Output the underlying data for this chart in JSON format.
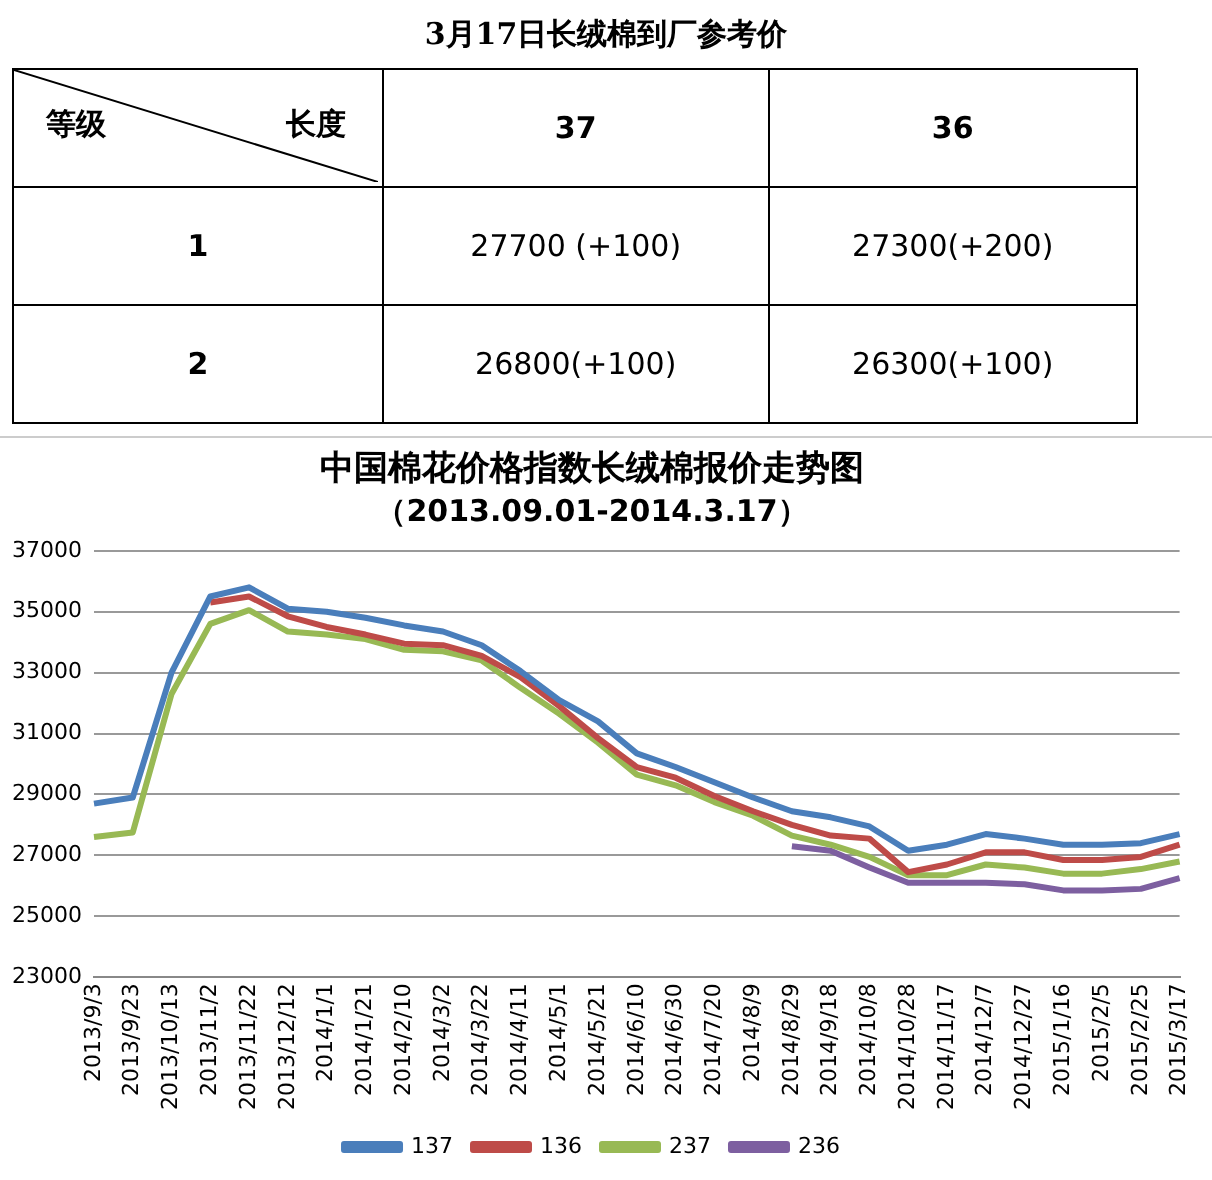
{
  "chart_data": [
    {
      "type": "other",
      "title": "3月17日长绒棉到厂参考价",
      "annotations": [
        "等级",
        "长度",
        "37",
        "36",
        "1",
        "27700 (+100)",
        "27300(+200)",
        "2",
        "26800(+100)",
        "26300(+100)"
      ]
    },
    {
      "type": "line",
      "title": "中国棉花价格指数长绒棉报价走势图",
      "subtitle": "（2013.09.01-2014.3.17）",
      "categories": [
        "2013/9/3",
        "2013/9/23",
        "2013/10/13",
        "2013/11/2",
        "2013/11/22",
        "2013/12/12",
        "2014/1/1",
        "2014/1/21",
        "2014/2/10",
        "2014/3/2",
        "2014/3/22",
        "2014/4/11",
        "2014/5/1",
        "2014/5/21",
        "2014/6/10",
        "2014/6/30",
        "2014/7/20",
        "2014/8/9",
        "2014/8/29",
        "2014/9/18",
        "2014/10/8",
        "2014/10/28",
        "2014/11/17",
        "2014/12/7",
        "2014/12/27",
        "2015/1/16",
        "2015/2/5",
        "2015/2/25",
        "2015/3/17"
      ],
      "series": [
        {
          "name": "137",
          "color": "#4a7ebb",
          "values": [
            28700,
            28900,
            33000,
            35500,
            35800,
            35100,
            35000,
            34800,
            34550,
            34350,
            33900,
            33050,
            32100,
            31400,
            30350,
            29900,
            29400,
            28900,
            28450,
            28250,
            27950,
            27150,
            27350,
            27700,
            27550,
            27350,
            27350,
            27400,
            27700
          ]
        },
        {
          "name": "136",
          "color": "#be4b48",
          "values": [
            null,
            null,
            null,
            35300,
            35500,
            34850,
            34500,
            34250,
            33950,
            33900,
            33550,
            32850,
            31900,
            30850,
            29900,
            29550,
            28950,
            28450,
            28000,
            27650,
            27550,
            26450,
            26700,
            27100,
            27100,
            26850,
            26850,
            26950,
            27350
          ]
        },
        {
          "name": "237",
          "color": "#98b954",
          "values": [
            27600,
            27750,
            32300,
            34600,
            35050,
            34350,
            34250,
            34100,
            33750,
            33700,
            33400,
            32500,
            31650,
            30700,
            29650,
            29300,
            28750,
            28300,
            27650,
            27350,
            26950,
            26350,
            26350,
            26700,
            26600,
            26400,
            26400,
            26550,
            26800
          ]
        },
        {
          "name": "236",
          "color": "#7d5fa0",
          "values": [
            null,
            null,
            null,
            null,
            null,
            null,
            null,
            null,
            null,
            null,
            null,
            null,
            null,
            null,
            null,
            null,
            null,
            null,
            27300,
            27150,
            26600,
            26100,
            26100,
            26100,
            26050,
            25850,
            25850,
            25900,
            26250
          ]
        }
      ],
      "ylim": [
        23000,
        37000
      ],
      "yticks": [
        23000,
        25000,
        27000,
        29000,
        31000,
        33000,
        35000,
        37000
      ],
      "grid": "y",
      "legend": "bottom",
      "marker": "none",
      "line_style": "solid"
    }
  ]
}
